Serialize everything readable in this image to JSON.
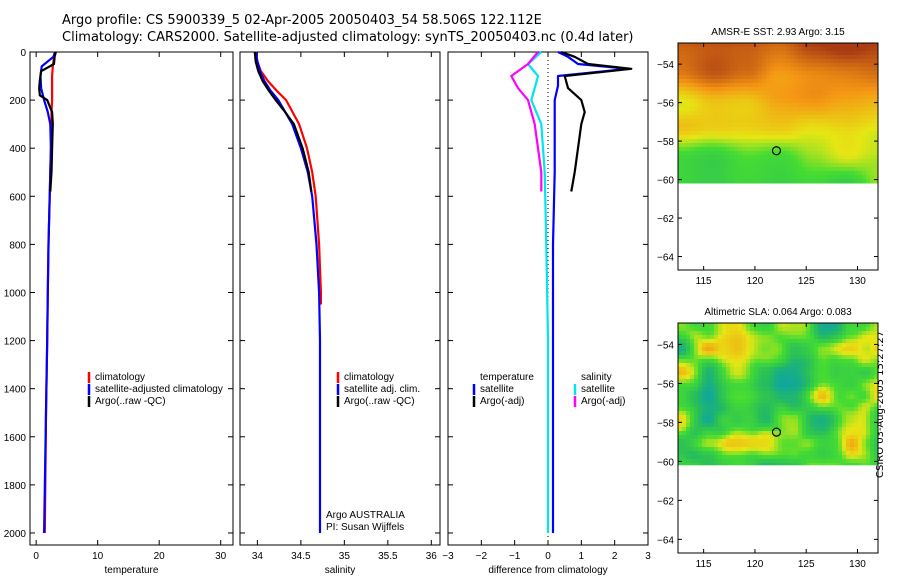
{
  "header": {
    "line1": "Argo profile: CS 5900339_5 02-Apr-2005 20050403_54 58.506S 122.112E",
    "line2": "Climatology: CARS2000. Satellite-adjusted climatology: synTS_20050403.nc (0.4d later)"
  },
  "colors": {
    "climatology": "#ff0000",
    "satellite": "#0000ff",
    "argo": "#000000",
    "sal_satellite": "#00e5ee",
    "sal_argo": "#ff00ff"
  },
  "chart_data": [
    {
      "type": "line",
      "id": "temperature",
      "xlabel": "temperature",
      "ylabel": "",
      "xlim": [
        -1,
        32
      ],
      "ylim": [
        2050,
        0
      ],
      "xticks": [
        0,
        10,
        20,
        30
      ],
      "yticks": [
        0,
        200,
        400,
        600,
        800,
        1000,
        1200,
        1400,
        1600,
        1800,
        2000
      ],
      "legend": [
        "climatology",
        "satellite-adjusted climatology",
        "Argo(..raw -QC)"
      ],
      "series": [
        {
          "name": "climatology",
          "color": "#ff0000",
          "depth": [
            0,
            20,
            60,
            100,
            150,
            200,
            250,
            300,
            400,
            500,
            600,
            800,
            1000,
            1200,
            1500,
            2000
          ],
          "values": [
            3.0,
            2.9,
            2.7,
            2.6,
            2.6,
            2.6,
            2.5,
            2.5,
            2.4,
            2.3,
            2.2,
            2.0,
            1.9,
            1.8,
            1.6,
            1.4
          ]
        },
        {
          "name": "satellite-adjusted climatology",
          "color": "#0000ff",
          "depth": [
            0,
            20,
            60,
            100,
            150,
            200,
            250,
            300,
            400,
            500,
            600,
            800,
            1000,
            1200,
            1500,
            2000
          ],
          "values": [
            3.1,
            2.8,
            0.9,
            0.7,
            0.8,
            1.3,
            1.9,
            2.3,
            2.4,
            2.3,
            2.2,
            2.0,
            1.9,
            1.8,
            1.6,
            1.3
          ]
        },
        {
          "name": "Argo(..raw -QC)",
          "color": "#000000",
          "depth": [
            0,
            20,
            50,
            80,
            120,
            150,
            180,
            200,
            250,
            300,
            400,
            500,
            580
          ],
          "values": [
            3.2,
            3.0,
            2.9,
            0.8,
            0.6,
            0.5,
            0.6,
            1.8,
            2.6,
            2.7,
            2.6,
            2.5,
            2.3
          ]
        }
      ]
    },
    {
      "type": "line",
      "id": "salinity",
      "xlabel": "salinity",
      "ylabel": "",
      "xlim": [
        33.8,
        36.1
      ],
      "ylim": [
        2050,
        0
      ],
      "xticks": [
        34,
        34.5,
        35,
        35.5,
        36
      ],
      "yticks": [
        0,
        200,
        400,
        600,
        800,
        1000,
        1200,
        1400,
        1600,
        1800,
        2000
      ],
      "legend": [
        "climatology",
        "satellite adj. clim.",
        "Argo(..raw -QC)"
      ],
      "annotation": [
        "Argo AUSTRALIA",
        "PI: Susan Wijffels"
      ],
      "series": [
        {
          "name": "climatology",
          "color": "#ff0000",
          "depth": [
            0,
            40,
            80,
            120,
            160,
            200,
            300,
            400,
            500,
            600,
            800,
            1000,
            1050
          ],
          "values": [
            33.98,
            34.0,
            34.04,
            34.12,
            34.22,
            34.33,
            34.48,
            34.57,
            34.63,
            34.67,
            34.71,
            34.73,
            34.73
          ]
        },
        {
          "name": "satellite adj. clim.",
          "color": "#0000ff",
          "depth": [
            0,
            40,
            80,
            120,
            160,
            200,
            300,
            400,
            500,
            600,
            800,
            1000,
            1200,
            1500,
            2000
          ],
          "values": [
            33.98,
            34.0,
            34.03,
            34.08,
            34.15,
            34.24,
            34.4,
            34.5,
            34.58,
            34.63,
            34.68,
            34.71,
            34.72,
            34.72,
            34.72
          ]
        },
        {
          "name": "Argo(..raw -QC)",
          "color": "#000000",
          "depth": [
            0,
            40,
            80,
            120,
            160,
            200,
            250,
            300,
            400,
            500,
            580
          ],
          "values": [
            33.97,
            33.98,
            34.01,
            34.06,
            34.13,
            34.21,
            34.32,
            34.42,
            34.52,
            34.59,
            34.62
          ]
        }
      ]
    },
    {
      "type": "line",
      "id": "difference",
      "xlabel": "difference from climatology",
      "ylabel": "",
      "xlim": [
        -3,
        3
      ],
      "ylim": [
        2050,
        0
      ],
      "xticks": [
        -3,
        -2,
        -1,
        0,
        1,
        2,
        3
      ],
      "yticks": [
        0,
        200,
        400,
        600,
        800,
        1000,
        1200,
        1400,
        1600,
        1800,
        2000
      ],
      "legend_left": [
        "temperature",
        "satellite",
        "Argo(-adj)"
      ],
      "legend_right": [
        "salinity",
        "satellite",
        "Argo(-adj)"
      ],
      "series": [
        {
          "name": "temperature satellite",
          "color": "#0000ff",
          "depth": [
            0,
            20,
            50,
            70,
            100,
            140,
            200,
            300,
            500,
            800,
            1200,
            1600,
            2000
          ],
          "values": [
            0.3,
            0.6,
            0.9,
            2.4,
            0.3,
            0.3,
            0.2,
            0.2,
            0.2,
            0.15,
            0.15,
            0.15,
            0.15
          ]
        },
        {
          "name": "temperature Argo(-adj)",
          "color": "#000000",
          "depth": [
            0,
            20,
            50,
            70,
            100,
            150,
            200,
            250,
            300,
            400,
            500,
            580
          ],
          "values": [
            0.4,
            0.8,
            1.2,
            2.5,
            0.5,
            0.6,
            1.0,
            1.1,
            1.0,
            0.9,
            0.8,
            0.7
          ]
        },
        {
          "name": "salinity satellite",
          "color": "#00e5ee",
          "depth": [
            0,
            50,
            100,
            150,
            200,
            300,
            500,
            800,
            1200,
            1600,
            2000
          ],
          "values": [
            -0.2,
            -0.6,
            -0.3,
            -0.4,
            -0.5,
            -0.2,
            -0.1,
            -0.05,
            0.0,
            0.0,
            0.0
          ]
        },
        {
          "name": "salinity Argo(-adj)",
          "color": "#ff00ff",
          "depth": [
            0,
            50,
            100,
            150,
            200,
            300,
            400,
            500,
            580
          ],
          "values": [
            -0.3,
            -0.6,
            -1.1,
            -0.9,
            -0.6,
            -0.4,
            -0.3,
            -0.2,
            -0.2
          ]
        }
      ]
    },
    {
      "type": "heatmap",
      "id": "sst_map",
      "title": "AMSR-E SST: 2.93  Argo: 3.15",
      "xticks": [
        115,
        120,
        125,
        130
      ],
      "yticks": [
        -54,
        -56,
        -58,
        -60,
        -62,
        -64
      ],
      "xlim": [
        112.5,
        132
      ],
      "ylim": [
        -64.7,
        -52.9
      ],
      "data_extent_lat": [
        -60.2,
        -52.9
      ],
      "marker": {
        "lon": 122.1,
        "lat": -58.5
      }
    },
    {
      "type": "heatmap",
      "id": "sla_map",
      "title": "Altimetric SLA: 0.064  Argo: 0.083",
      "xticks": [
        115,
        120,
        125,
        130
      ],
      "yticks": [
        -54,
        -56,
        -58,
        -60,
        -62,
        -64
      ],
      "xlim": [
        112.5,
        132
      ],
      "ylim": [
        -64.7,
        -52.9
      ],
      "data_extent_lat": [
        -60.2,
        -52.9
      ],
      "marker": {
        "lon": 122.1,
        "lat": -58.5
      }
    }
  ],
  "footer": {
    "signature": "CSIRO 03-Aug-2005 15:27:27"
  }
}
